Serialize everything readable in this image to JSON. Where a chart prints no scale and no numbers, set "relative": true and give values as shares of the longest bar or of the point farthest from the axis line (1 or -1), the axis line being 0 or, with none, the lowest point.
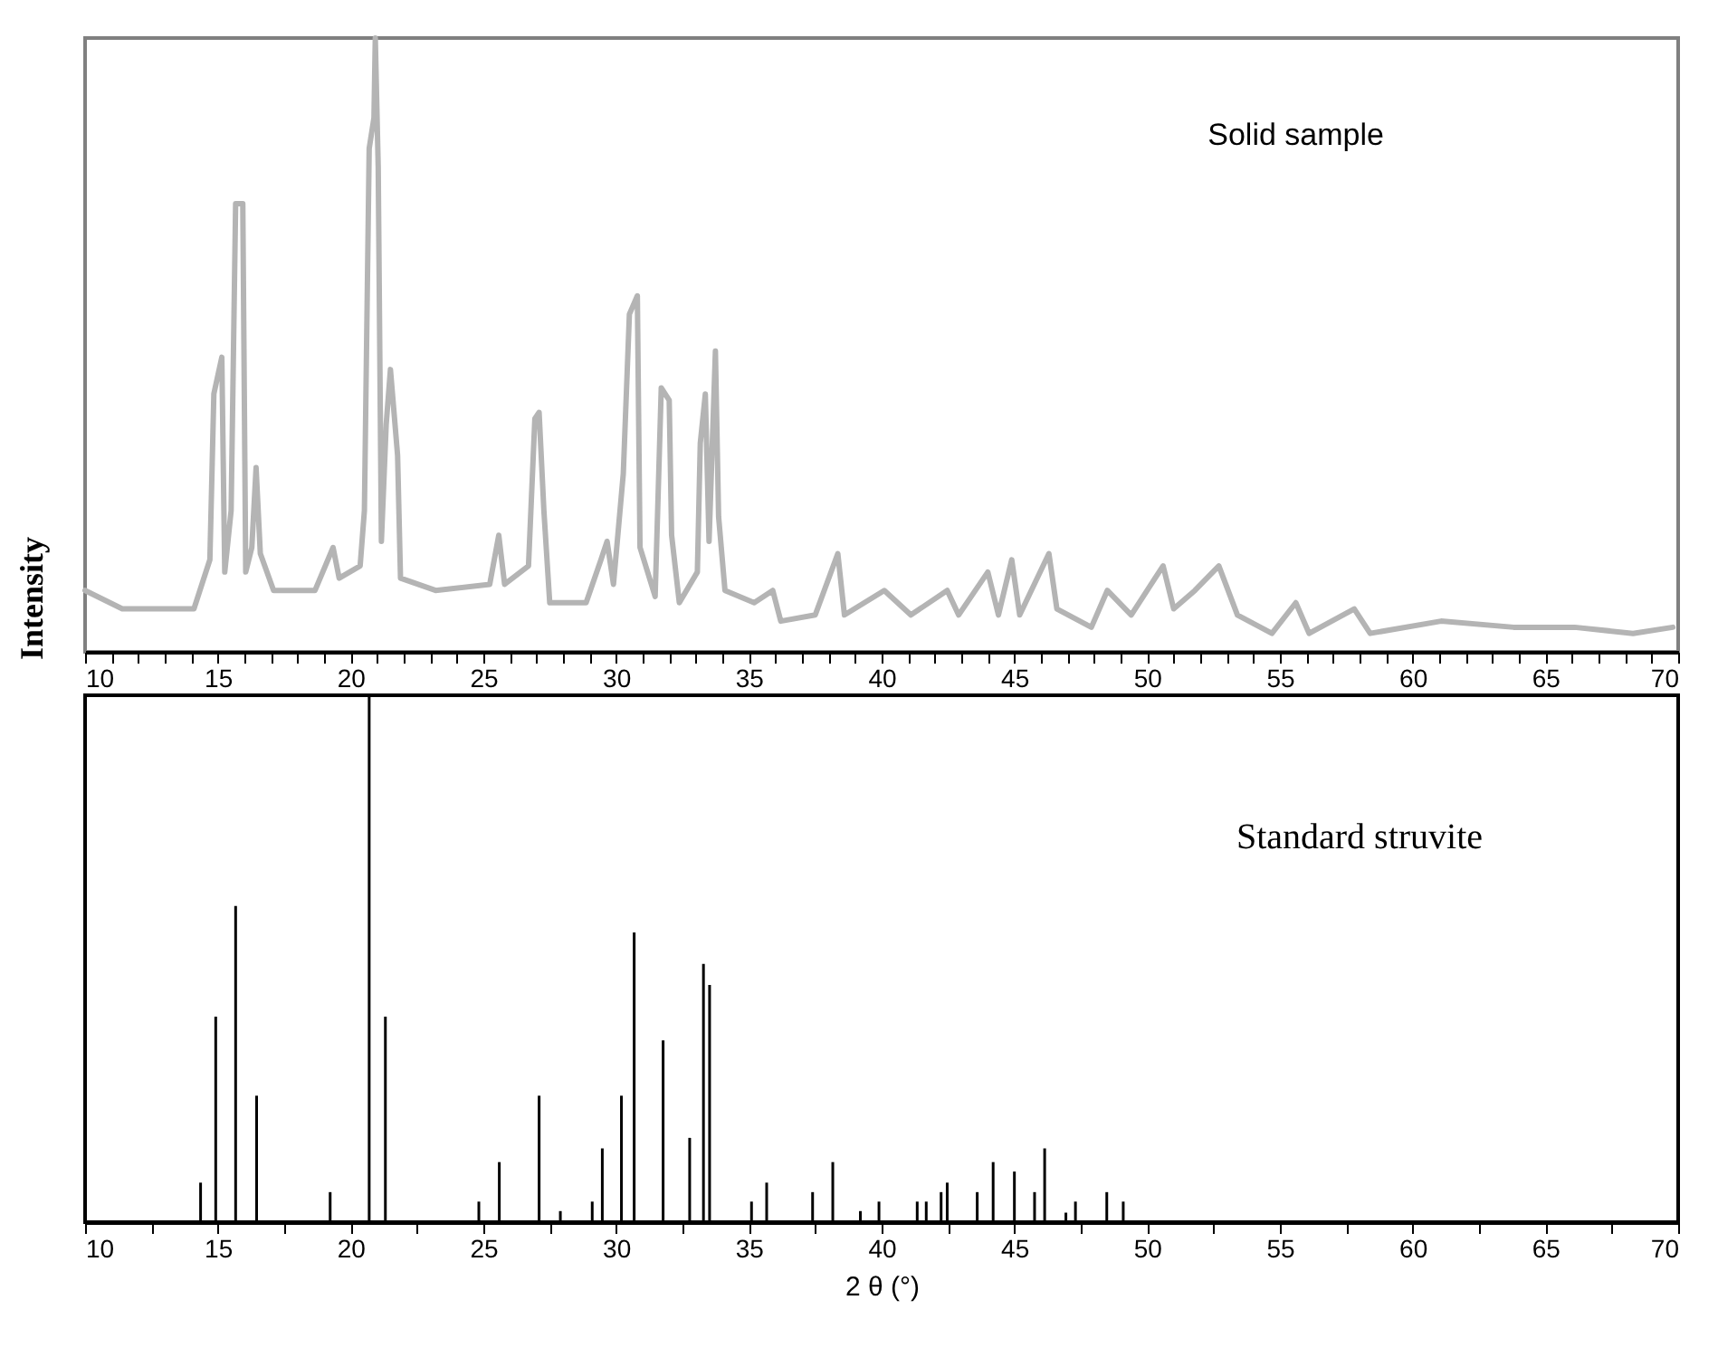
{
  "chart_data": [
    {
      "type": "line",
      "relative": true,
      "ylabel": "Intensity",
      "annotations": [
        "Solid sample"
      ],
      "tick_labels": "x",
      "xlim": [
        10,
        70
      ],
      "xticks": [
        10,
        {
          "value": 11,
          "label": null
        },
        {
          "value": 12,
          "label": null
        },
        {
          "value": 13,
          "label": null
        },
        {
          "value": 14,
          "label": null
        },
        15,
        {
          "value": 16,
          "label": null
        },
        {
          "value": 17,
          "label": null
        },
        {
          "value": 18,
          "label": null
        },
        {
          "value": 19,
          "label": null
        },
        20,
        {
          "value": 21,
          "label": null
        },
        {
          "value": 22,
          "label": null
        },
        {
          "value": 23,
          "label": null
        },
        {
          "value": 24,
          "label": null
        },
        25,
        {
          "value": 26,
          "label": null
        },
        {
          "value": 27,
          "label": null
        },
        {
          "value": 28,
          "label": null
        },
        {
          "value": 29,
          "label": null
        },
        30,
        {
          "value": 31,
          "label": null
        },
        {
          "value": 32,
          "label": null
        },
        {
          "value": 33,
          "label": null
        },
        {
          "value": 34,
          "label": null
        },
        35,
        {
          "value": 36,
          "label": null
        },
        {
          "value": 37,
          "label": null
        },
        {
          "value": 38,
          "label": null
        },
        {
          "value": 39,
          "label": null
        },
        40,
        {
          "value": 41,
          "label": null
        },
        {
          "value": 42,
          "label": null
        },
        {
          "value": 43,
          "label": null
        },
        {
          "value": 44,
          "label": null
        },
        45,
        {
          "value": 46,
          "label": null
        },
        {
          "value": 47,
          "label": null
        },
        {
          "value": 48,
          "label": null
        },
        {
          "value": 49,
          "label": null
        },
        50,
        {
          "value": 51,
          "label": null
        },
        {
          "value": 52,
          "label": null
        },
        {
          "value": 53,
          "label": null
        },
        {
          "value": 54,
          "label": null
        },
        55,
        {
          "value": 56,
          "label": null
        },
        {
          "value": 57,
          "label": null
        },
        {
          "value": 58,
          "label": null
        },
        {
          "value": 59,
          "label": null
        },
        60,
        {
          "value": 61,
          "label": null
        },
        {
          "value": 62,
          "label": null
        },
        {
          "value": 63,
          "label": null
        },
        {
          "value": 64,
          "label": null
        },
        65,
        {
          "value": 66,
          "label": null
        },
        {
          "value": 67,
          "label": null
        },
        {
          "value": 68,
          "label": null
        },
        {
          "value": 69,
          "label": null
        },
        70
      ],
      "series": [
        {
          "color": "#b4b4b4",
          "x": [
            10,
            11.4,
            14.1,
            14.7,
            14.85,
            15.15,
            15.26,
            15.5,
            15.67,
            15.94,
            16.05,
            16.28,
            16.44,
            16.6,
            17.1,
            18.66,
            19.34,
            19.57,
            20.36,
            20.52,
            20.7,
            20.88,
            20.93,
            21.04,
            21.16,
            21.34,
            21.5,
            21.77,
            21.88,
            23.2,
            25.24,
            25.58,
            25.8,
            26.7,
            26.94,
            27.1,
            27.28,
            27.5,
            28.87,
            29.43,
            29.66,
            29.9,
            30.27,
            30.5,
            30.8,
            30.9,
            31.47,
            31.7,
            32.0,
            32.09,
            32.38,
            33.06,
            33.17,
            33.36,
            33.5,
            33.74,
            33.86,
            34.1,
            35.2,
            35.9,
            36.2,
            37.5,
            38.35,
            38.6,
            40.1,
            41.1,
            42.47,
            42.9,
            44.0,
            44.4,
            44.9,
            45.2,
            46.3,
            46.6,
            47.9,
            48.5,
            49.4,
            50.6,
            51.0,
            51.8,
            52.7,
            53.4,
            54.7,
            55.6,
            56.1,
            57.8,
            58.4,
            61.07,
            63.8,
            66.1,
            68.3,
            69.8
          ],
          "values": [
            0.1,
            0.07,
            0.07,
            0.15,
            0.42,
            0.48,
            0.13,
            0.23,
            0.73,
            0.73,
            0.13,
            0.17,
            0.3,
            0.16,
            0.1,
            0.1,
            0.17,
            0.12,
            0.14,
            0.23,
            0.82,
            0.87,
            1.0,
            0.79,
            0.18,
            0.37,
            0.46,
            0.32,
            0.12,
            0.1,
            0.11,
            0.19,
            0.11,
            0.14,
            0.38,
            0.39,
            0.23,
            0.08,
            0.08,
            0.15,
            0.18,
            0.11,
            0.29,
            0.55,
            0.58,
            0.17,
            0.09,
            0.43,
            0.41,
            0.19,
            0.08,
            0.13,
            0.34,
            0.42,
            0.18,
            0.49,
            0.22,
            0.1,
            0.08,
            0.1,
            0.05,
            0.06,
            0.16,
            0.06,
            0.1,
            0.06,
            0.1,
            0.06,
            0.13,
            0.06,
            0.15,
            0.06,
            0.16,
            0.07,
            0.04,
            0.1,
            0.06,
            0.14,
            0.07,
            0.1,
            0.14,
            0.06,
            0.03,
            0.08,
            0.03,
            0.07,
            0.03,
            0.05,
            0.04,
            0.04,
            0.03,
            0.04
          ]
        }
      ]
    },
    {
      "type": "bar",
      "relative": true,
      "xlabel": "2 θ (°)",
      "annotations": [
        "Standard struvite"
      ],
      "tick_labels": "x",
      "xlim": [
        10,
        70
      ],
      "xticks": [
        10,
        {
          "value": 12.5,
          "label": null
        },
        15,
        {
          "value": 17.5,
          "label": null
        },
        20,
        {
          "value": 22.5,
          "label": null
        },
        25,
        {
          "value": 27.5,
          "label": null
        },
        30,
        {
          "value": 32.5,
          "label": null
        },
        35,
        {
          "value": 37.5,
          "label": null
        },
        40,
        {
          "value": 42.5,
          "label": null
        },
        45,
        {
          "value": 47.5,
          "label": null
        },
        50,
        {
          "value": 52.5,
          "label": null
        },
        55,
        {
          "value": 57.5,
          "label": null
        },
        60,
        {
          "value": 62.5,
          "label": null
        },
        65,
        {
          "value": 67.5,
          "label": null
        },
        70
      ],
      "series": [
        {
          "color": "#000000",
          "x": [
            14.35,
            14.92,
            15.67,
            16.46,
            19.23,
            20.7,
            21.31,
            24.83,
            25.6,
            27.1,
            27.9,
            29.1,
            29.48,
            30.2,
            30.68,
            31.77,
            32.77,
            33.29,
            33.52,
            35.1,
            35.67,
            37.4,
            38.16,
            39.2,
            39.9,
            41.34,
            41.68,
            42.24,
            42.47,
            43.6,
            44.2,
            45.0,
            45.76,
            46.14,
            46.94,
            47.3,
            48.48,
            49.1
          ],
          "values": [
            0.075,
            0.39,
            0.6,
            0.24,
            0.057,
            1.0,
            0.39,
            0.039,
            0.114,
            0.24,
            0.021,
            0.039,
            0.14,
            0.24,
            0.55,
            0.345,
            0.16,
            0.49,
            0.45,
            0.039,
            0.075,
            0.057,
            0.114,
            0.021,
            0.039,
            0.039,
            0.039,
            0.057,
            0.075,
            0.057,
            0.114,
            0.096,
            0.057,
            0.14,
            0.018,
            0.039,
            0.057,
            0.039
          ]
        }
      ]
    }
  ]
}
